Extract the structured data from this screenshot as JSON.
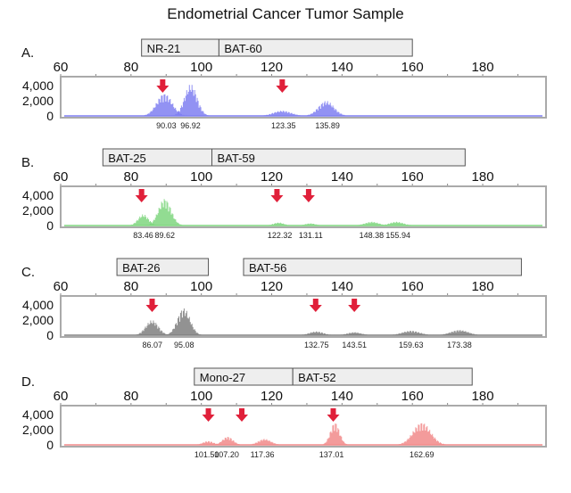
{
  "title": "Endometrial Cancer Tumor Sample",
  "chart_data": [
    {
      "type": "area",
      "panel": "A.",
      "color": "#7f7ff2",
      "xlim": [
        60,
        198
      ],
      "ylim": [
        0,
        5200
      ],
      "xticks": [
        60,
        80,
        100,
        120,
        140,
        160,
        180
      ],
      "yticks": [
        0,
        2000,
        4000
      ],
      "ytick_labels": [
        "0",
        "2,000",
        "4,000"
      ],
      "markers": [
        {
          "name": "NR-21",
          "range": [
            83,
            105
          ]
        },
        {
          "name": "BAT-60",
          "range": [
            105,
            160
          ]
        }
      ],
      "peaks": [
        {
          "x": 89.5,
          "y": 3000,
          "w": 2.2
        },
        {
          "x": 97,
          "y": 4200,
          "w": 1.8
        },
        {
          "x": 123,
          "y": 700,
          "w": 2.5
        },
        {
          "x": 135.5,
          "y": 2000,
          "w": 2.2
        }
      ],
      "peak_labels": [
        "90.03",
        "96.92",
        "123.35",
        "135.89"
      ],
      "arrows": [
        89,
        123
      ]
    },
    {
      "type": "area",
      "panel": "B.",
      "color": "#7fd67f",
      "xlim": [
        60,
        198
      ],
      "ylim": [
        0,
        5200
      ],
      "xticks": [
        60,
        80,
        100,
        120,
        140,
        160,
        180
      ],
      "yticks": [
        0,
        2000,
        4000
      ],
      "ytick_labels": [
        "0",
        "2,000",
        "4,000"
      ],
      "markers": [
        {
          "name": "BAT-25",
          "range": [
            72,
            103
          ]
        },
        {
          "name": "BAT-59",
          "range": [
            103,
            175
          ]
        }
      ],
      "peaks": [
        {
          "x": 83.5,
          "y": 1500,
          "w": 1.5
        },
        {
          "x": 89.6,
          "y": 3600,
          "w": 1.8
        },
        {
          "x": 122,
          "y": 400,
          "w": 1.5
        },
        {
          "x": 131,
          "y": 300,
          "w": 1.5
        },
        {
          "x": 148.5,
          "y": 500,
          "w": 2
        },
        {
          "x": 155.5,
          "y": 500,
          "w": 2
        }
      ],
      "peak_labels": [
        "83.46",
        "89.62",
        "122.32",
        "131.11",
        "148.38",
        "155.94"
      ],
      "arrows": [
        83,
        121.5,
        130.5
      ]
    },
    {
      "type": "area",
      "panel": "C.",
      "color": "#808080",
      "xlim": [
        60,
        198
      ],
      "ylim": [
        0,
        5200
      ],
      "xticks": [
        60,
        80,
        100,
        120,
        140,
        160,
        180
      ],
      "yticks": [
        0,
        2000,
        4000
      ],
      "ytick_labels": [
        "0",
        "2,000",
        "4,000"
      ],
      "markers": [
        {
          "name": "BAT-26",
          "range": [
            76,
            102
          ]
        },
        {
          "name": "BAT-56",
          "range": [
            112,
            191
          ]
        }
      ],
      "peaks": [
        {
          "x": 86,
          "y": 2000,
          "w": 1.8
        },
        {
          "x": 95,
          "y": 3600,
          "w": 1.8
        },
        {
          "x": 132.7,
          "y": 500,
          "w": 2
        },
        {
          "x": 143.5,
          "y": 400,
          "w": 2
        },
        {
          "x": 159.6,
          "y": 600,
          "w": 2.5
        },
        {
          "x": 173.4,
          "y": 700,
          "w": 2.5
        }
      ],
      "peak_labels": [
        "86.07",
        "95.08",
        "132.75",
        "143.51",
        "159.63",
        "173.38"
      ],
      "arrows": [
        86,
        132.5,
        143.5
      ]
    },
    {
      "type": "area",
      "panel": "D.",
      "color": "#f28a8a",
      "xlim": [
        60,
        198
      ],
      "ylim": [
        0,
        5200
      ],
      "xticks": [
        60,
        80,
        100,
        120,
        140,
        160,
        180
      ],
      "yticks": [
        0,
        2000,
        4000
      ],
      "ytick_labels": [
        "0",
        "2,000",
        "4,000"
      ],
      "markers": [
        {
          "name": "Mono-27",
          "range": [
            98,
            126
          ]
        },
        {
          "name": "BAT-52",
          "range": [
            126,
            177
          ]
        }
      ],
      "peaks": [
        {
          "x": 102,
          "y": 500,
          "w": 1.5
        },
        {
          "x": 107.5,
          "y": 1100,
          "w": 1.5
        },
        {
          "x": 118,
          "y": 800,
          "w": 1.8
        },
        {
          "x": 138,
          "y": 3000,
          "w": 1.3
        },
        {
          "x": 162.7,
          "y": 3000,
          "w": 2.5
        }
      ],
      "peak_labels": [
        "101.50",
        "107.20",
        "117.36",
        "137.01",
        "162.69"
      ],
      "arrows": [
        102,
        111.5,
        137.5
      ]
    }
  ]
}
